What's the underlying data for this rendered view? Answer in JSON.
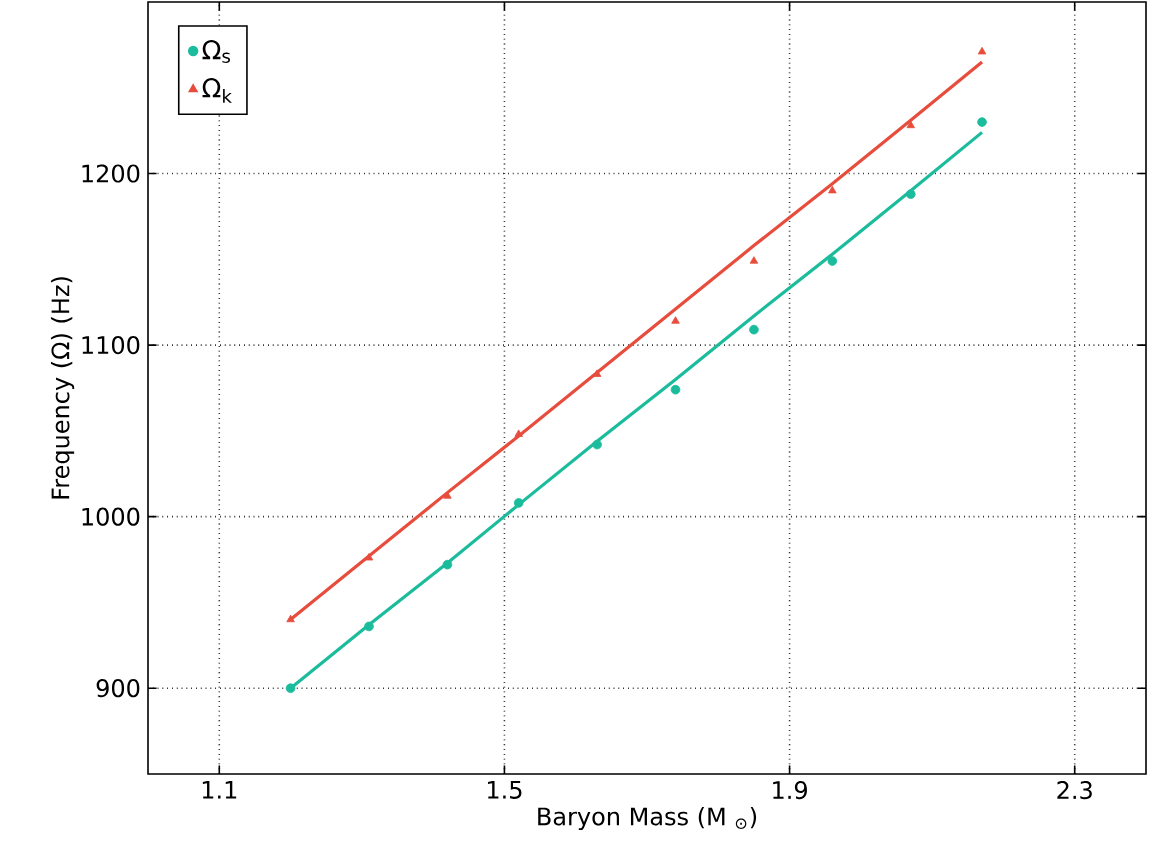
{
  "chart_data": {
    "type": "scatter",
    "xlabel": "Baryon Mass (M $_{⊙}$)",
    "ylabel": "Frequency (Ω) (Hz)",
    "xlim": [
      1.0,
      2.4
    ],
    "ylim": [
      850,
      1300
    ],
    "xticks": [
      1.1,
      1.5,
      1.9,
      2.3
    ],
    "yticks": [
      900,
      1000,
      1100,
      1200
    ],
    "grid": true,
    "legend": "top left",
    "series": [
      {
        "type": "line",
        "color": "#1abc9c",
        "line_style": "solid",
        "x": [
          1.2,
          1.31,
          1.42,
          1.52,
          1.63,
          1.74,
          1.85,
          1.96,
          2.07,
          2.17
        ],
        "values": [
          900,
          937,
          973,
          1007,
          1044,
          1080,
          1117,
          1153,
          1190,
          1224
        ]
      },
      {
        "type": "line",
        "color": "#e74c3c",
        "line_style": "solid",
        "x": [
          1.2,
          1.31,
          1.42,
          1.52,
          1.63,
          1.74,
          1.85,
          1.96,
          2.07,
          2.17
        ],
        "values": [
          940,
          977,
          1014,
          1047,
          1084,
          1121,
          1158,
          1194,
          1231,
          1265
        ]
      },
      {
        "name": "Ω$_{s}$",
        "color": "#1abc9c",
        "marker": "circle",
        "x": [
          1.2,
          1.31,
          1.42,
          1.52,
          1.63,
          1.74,
          1.85,
          1.96,
          2.07,
          2.17
        ],
        "values": [
          900,
          936,
          972,
          1008,
          1042,
          1074,
          1109,
          1149,
          1188,
          1230
        ]
      },
      {
        "name": "Ω$_{k}$",
        "color": "#e74c3c",
        "marker": "triangle",
        "x": [
          1.2,
          1.31,
          1.42,
          1.52,
          1.63,
          1.74,
          1.85,
          1.96,
          2.07,
          2.17
        ],
        "values": [
          940,
          976,
          1012,
          1048,
          1083,
          1114,
          1149,
          1190,
          1228,
          1271
        ]
      }
    ]
  }
}
